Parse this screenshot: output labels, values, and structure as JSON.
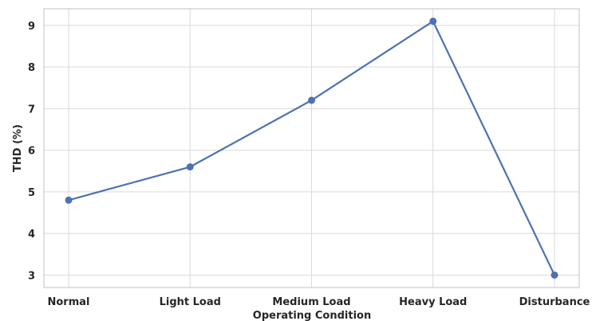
{
  "chart_data": {
    "type": "line",
    "categories": [
      "Normal",
      "Light Load",
      "Medium Load",
      "Heavy Load",
      "Disturbance"
    ],
    "series": [
      {
        "values": [
          4.8,
          5.6,
          7.2,
          9.1,
          3.0
        ]
      }
    ],
    "xlabel": "Operating Condition",
    "ylabel": "THD (%)",
    "ylim": [
      2.7,
      9.4
    ],
    "yticks": [
      3,
      4,
      5,
      6,
      7,
      8,
      9
    ],
    "grid": true,
    "line_color": "#4c72b0",
    "marker": "circle"
  }
}
